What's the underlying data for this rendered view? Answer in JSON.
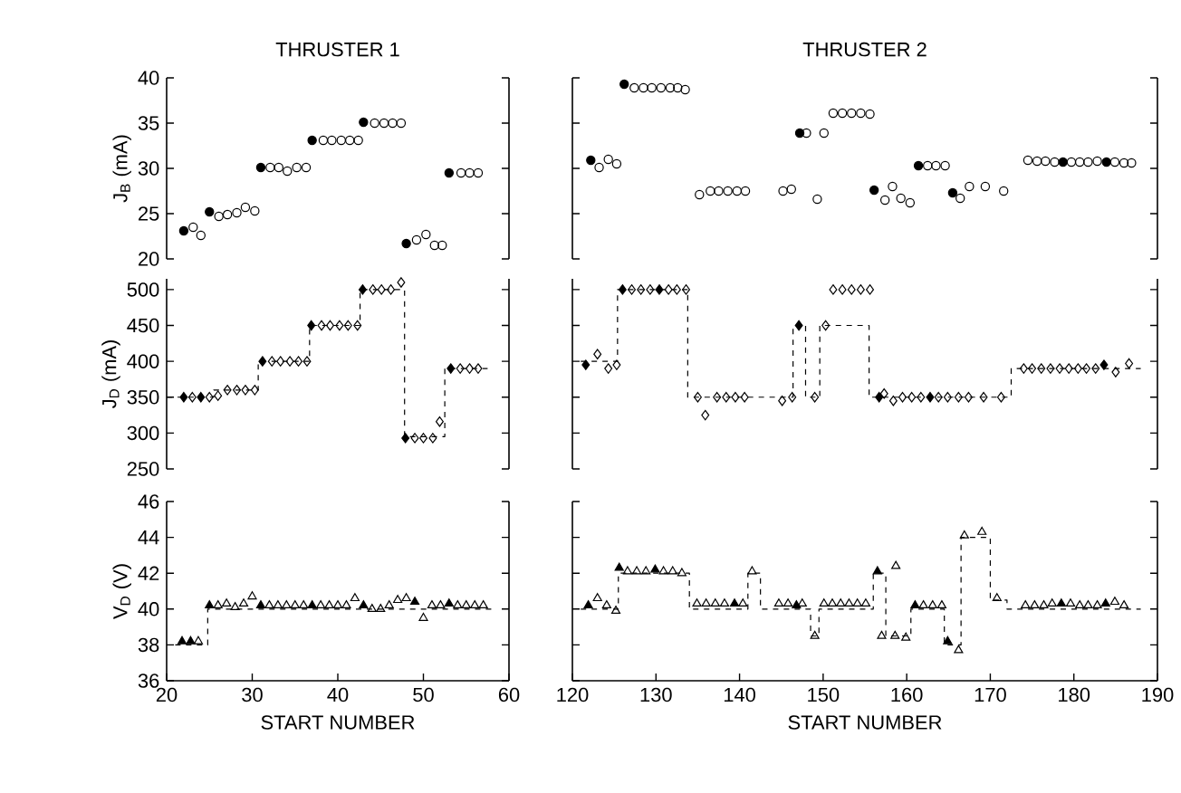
{
  "chart_data": [
    {
      "type": "scatter",
      "title": "THRUSTER 1",
      "ylabel": "J$_{B}$ (mA)",
      "marker": "circle",
      "xlim": [
        20,
        60
      ],
      "ylim": [
        20,
        40
      ],
      "yticks": [
        20,
        25,
        30,
        35,
        40
      ],
      "tick_labels": "y",
      "series": [
        {
          "color": "#000000",
          "x": [
            22,
            25,
            31,
            37,
            43,
            48,
            53
          ],
          "values": [
            23.1,
            25.2,
            30.1,
            33.1,
            35.1,
            21.7,
            29.5
          ]
        },
        {
          "color": "#000000",
          "x": [
            23.1,
            24,
            26.1,
            27.1,
            28.2,
            29.2,
            30.3,
            32.1,
            33.1,
            34.1,
            35.2,
            36.3,
            38.3,
            39.3,
            40.4,
            41.4,
            42.4,
            44.3,
            45.4,
            46.4,
            47.4,
            49.2,
            50.3,
            51.3,
            52.2,
            54.4,
            55.4,
            56.4
          ],
          "values": [
            23.5,
            22.6,
            24.7,
            24.9,
            25.1,
            25.7,
            25.3,
            30.1,
            30.1,
            29.7,
            30.1,
            30.1,
            33.1,
            33.1,
            33.1,
            33.1,
            33.1,
            35,
            35,
            35,
            35,
            22.1,
            22.7,
            21.5,
            21.5,
            29.5,
            29.5,
            29.5
          ]
        }
      ]
    },
    {
      "type": "scatter",
      "title": "THRUSTER 2",
      "marker": "circle",
      "xlim": [
        120,
        190
      ],
      "ylim": [
        20,
        40
      ],
      "yticks": [
        20,
        25,
        30,
        35,
        40
      ],
      "tick_labels": false,
      "series": [
        {
          "color": "#000000",
          "x": [
            122.2,
            126.2,
            147.2,
            156.1,
            161.4,
            165.5,
            178.7,
            183.9
          ],
          "values": [
            30.9,
            39.3,
            33.9,
            27.6,
            30.3,
            27.3,
            30.7,
            30.7
          ]
        },
        {
          "color": "#000000",
          "x": [
            123.2,
            124.3,
            125.3,
            127.4,
            128.5,
            129.5,
            130.6,
            131.7,
            132.6,
            133.5,
            135.2,
            136.5,
            137.5,
            138.6,
            139.7,
            140.7,
            145.2,
            146.2,
            148,
            149.3,
            150.1,
            151.2,
            152.3,
            153.4,
            154.5,
            155.6,
            157.4,
            158.3,
            159.3,
            160.4,
            162.5,
            163.5,
            164.6,
            166.4,
            167.5,
            169.4,
            171.6,
            174.5,
            175.6,
            176.6,
            177.7,
            179.7,
            180.7,
            181.7,
            182.8,
            184.9,
            186,
            186.9
          ],
          "values": [
            30.1,
            31,
            30.5,
            38.9,
            38.9,
            38.9,
            38.9,
            38.9,
            38.9,
            38.7,
            27.1,
            27.5,
            27.5,
            27.5,
            27.5,
            27.5,
            27.5,
            27.7,
            33.9,
            26.6,
            33.9,
            36.1,
            36.1,
            36.1,
            36.1,
            36,
            26.5,
            28,
            26.7,
            26.2,
            30.3,
            30.3,
            30.3,
            26.7,
            28,
            28,
            27.5,
            30.9,
            30.8,
            30.8,
            30.7,
            30.7,
            30.7,
            30.7,
            30.8,
            30.7,
            30.6,
            30.6
          ]
        }
      ]
    },
    {
      "type": "scatter",
      "ylabel": "J$_{D}$ (mA)",
      "marker": "diamond",
      "xlim": [
        20,
        60
      ],
      "ylim": [
        250,
        515
      ],
      "yticks": [
        250,
        300,
        350,
        400,
        450,
        500
      ],
      "tick_labels": "y",
      "series": [
        {
          "color": "#000000",
          "x": [
            22,
            24,
            31.2,
            36.9,
            42.9,
            47.9,
            53.2
          ],
          "values": [
            350,
            350,
            400,
            450,
            500,
            293,
            390
          ]
        },
        {
          "color": "#000000",
          "x": [
            23,
            25,
            26,
            27.1,
            28.2,
            29.2,
            30.3,
            32.3,
            33.3,
            34.4,
            35.4,
            36.4,
            38.1,
            39.1,
            40.2,
            41.2,
            42.3,
            44.1,
            45.1,
            46.2,
            47.4,
            49,
            50,
            51.1,
            51.9,
            54.3,
            55.4,
            56.4
          ],
          "values": [
            350,
            350,
            352,
            360,
            360,
            360,
            360,
            400,
            400,
            400,
            400,
            400,
            450,
            450,
            450,
            450,
            450,
            500,
            500,
            500,
            510,
            293,
            293,
            293,
            316,
            390,
            390,
            390
          ]
        },
        {
          "type": "line",
          "marker": "none",
          "line_style": "dashed",
          "color": "#000000",
          "x": [
            20,
            25.5,
            25.5,
            30.7,
            30.7,
            36.7,
            36.7,
            42.6,
            42.6,
            47.8,
            47.8,
            52.5,
            52.5,
            57.5
          ],
          "values": [
            350,
            350,
            360,
            360,
            400,
            400,
            450,
            450,
            500,
            500,
            295,
            295,
            390,
            390
          ]
        }
      ]
    },
    {
      "type": "scatter",
      "marker": "diamond",
      "xlim": [
        120,
        190
      ],
      "ylim": [
        250,
        515
      ],
      "yticks": [
        250,
        300,
        350,
        400,
        450,
        500
      ],
      "tick_labels": false,
      "series": [
        {
          "color": "#000000",
          "x": [
            121.6,
            126,
            130.4,
            147.1,
            156.7,
            162.8,
            183.6
          ],
          "values": [
            395,
            500,
            500,
            450,
            350,
            350,
            395
          ]
        },
        {
          "color": "#000000",
          "x": [
            123,
            124.3,
            125.3,
            127.1,
            128.2,
            129.3,
            131.5,
            132.5,
            133.6,
            135,
            135.9,
            137.3,
            138.4,
            139.5,
            140.6,
            145.1,
            146.3,
            149,
            150.3,
            151.2,
            152.3,
            153.4,
            154.5,
            155.6,
            157.3,
            158.4,
            159.5,
            160.6,
            161.7,
            163.8,
            164.9,
            166.2,
            167.4,
            169.2,
            171.3,
            174,
            175,
            176.1,
            177.2,
            178.3,
            179.4,
            180.5,
            181.5,
            182.6,
            185,
            186.6
          ],
          "values": [
            410,
            390,
            395,
            500,
            500,
            500,
            500,
            500,
            500,
            350,
            325,
            350,
            350,
            350,
            350,
            345,
            350,
            350,
            450,
            500,
            500,
            500,
            500,
            500,
            355,
            345,
            350,
            350,
            350,
            350,
            350,
            350,
            350,
            350,
            350,
            390,
            390,
            390,
            390,
            390,
            390,
            390,
            390,
            390,
            385,
            397
          ]
        },
        {
          "type": "line",
          "marker": "none",
          "line_style": "dashed",
          "color": "#000000",
          "x": [
            121,
            125.4,
            125.4,
            133.8,
            133.8,
            146.4,
            146.4,
            147.9,
            147.9,
            149.6,
            149.6,
            155.5,
            155.5,
            172.5,
            172.5,
            188
          ],
          "values": [
            400,
            400,
            500,
            500,
            350,
            350,
            450,
            450,
            350,
            350,
            450,
            450,
            350,
            350,
            390,
            390
          ]
        }
      ]
    },
    {
      "type": "scatter",
      "ylabel": "V$_{D}$ (V)",
      "xlabel": "START NUMBER",
      "marker": "triangle",
      "xlim": [
        20,
        60
      ],
      "ylim": [
        36,
        46
      ],
      "xticks": [
        20,
        30,
        40,
        50,
        60
      ],
      "yticks": [
        36,
        38,
        40,
        42,
        44,
        46
      ],
      "series": [
        {
          "color": "#000000",
          "x": [
            21.8,
            22.8,
            25,
            31,
            37,
            43,
            49,
            53
          ],
          "values": [
            38.2,
            38.2,
            40.2,
            40.2,
            40.2,
            40.2,
            40.4,
            40.3
          ]
        },
        {
          "color": "#000000",
          "x": [
            23.7,
            26,
            27,
            28,
            29,
            30,
            32,
            33,
            34,
            35,
            36,
            38,
            39,
            40,
            41,
            42,
            44,
            45,
            46,
            47,
            48,
            50,
            51,
            52,
            54,
            55,
            56,
            57
          ],
          "values": [
            38.2,
            40.2,
            40.3,
            40.1,
            40.3,
            40.7,
            40.2,
            40.2,
            40.2,
            40.2,
            40.2,
            40.2,
            40.2,
            40.2,
            40.2,
            40.6,
            40,
            40,
            40.2,
            40.5,
            40.6,
            39.5,
            40.2,
            40.2,
            40.2,
            40.2,
            40.2,
            40.2
          ]
        },
        {
          "type": "line",
          "marker": "none",
          "line_style": "dashed",
          "color": "#000000",
          "x": [
            21,
            24.8,
            24.8,
            58
          ],
          "values": [
            38,
            38,
            40,
            40
          ]
        }
      ]
    },
    {
      "type": "scatter",
      "xlabel": "START NUMBER",
      "marker": "triangle",
      "xlim": [
        120,
        190
      ],
      "ylim": [
        36,
        46
      ],
      "xticks": [
        120,
        130,
        140,
        150,
        160,
        170,
        180,
        190
      ],
      "yticks": [
        36,
        38,
        40,
        42,
        44,
        46
      ],
      "tick_labels": "x",
      "series": [
        {
          "color": "#000000",
          "x": [
            121.9,
            125.6,
            129.9,
            139.4,
            146.8,
            156.5,
            161,
            164.9,
            178.5,
            183.8
          ],
          "values": [
            40.2,
            42.3,
            42.2,
            40.3,
            40.2,
            42.1,
            40.2,
            38.2,
            40.3,
            40.3
          ]
        },
        {
          "color": "#000000",
          "x": [
            123,
            124.1,
            125.2,
            126.6,
            127.7,
            128.8,
            130.9,
            132,
            133.1,
            134.9,
            136,
            137.1,
            138.2,
            140.4,
            141.5,
            144.7,
            145.8,
            147.5,
            149,
            150.1,
            151.1,
            152.1,
            153.1,
            154.1,
            155.1,
            157,
            158.6,
            158.7,
            159.9,
            162,
            163.1,
            164.2,
            166.2,
            166.9,
            169,
            170.8,
            174.2,
            175.3,
            176.4,
            177.4,
            179.6,
            180.7,
            181.7,
            182.8,
            184.9,
            186
          ],
          "values": [
            40.6,
            40.2,
            39.9,
            42.1,
            42.1,
            42.1,
            42.1,
            42.1,
            42,
            40.3,
            40.3,
            40.3,
            40.3,
            40.3,
            42.1,
            40.3,
            40.3,
            40.3,
            38.5,
            40.3,
            40.3,
            40.3,
            40.3,
            40.3,
            40.3,
            38.5,
            38.5,
            42.4,
            38.4,
            40.2,
            40.2,
            40.2,
            37.7,
            44.1,
            44.3,
            40.6,
            40.2,
            40.2,
            40.2,
            40.3,
            40.3,
            40.2,
            40.2,
            40.2,
            40.4,
            40.2
          ]
        },
        {
          "type": "line",
          "marker": "none",
          "line_style": "dashed",
          "color": "#000000",
          "x": [
            121,
            125.5,
            125.5,
            134,
            134,
            141,
            141,
            142.5,
            142.5,
            148.5,
            148.5,
            149.5,
            149.5,
            156,
            156,
            157.5,
            157.5,
            160.5,
            160.5,
            164.5,
            164.5,
            166.5,
            166.5,
            170,
            170,
            172,
            172,
            188
          ],
          "values": [
            40,
            40,
            42,
            42,
            40,
            40,
            42,
            42,
            40,
            40,
            38.5,
            38.5,
            40,
            40,
            42,
            42,
            38.5,
            38.5,
            40,
            40,
            38,
            38,
            44,
            44,
            40.5,
            40.5,
            40,
            40
          ]
        }
      ]
    }
  ]
}
